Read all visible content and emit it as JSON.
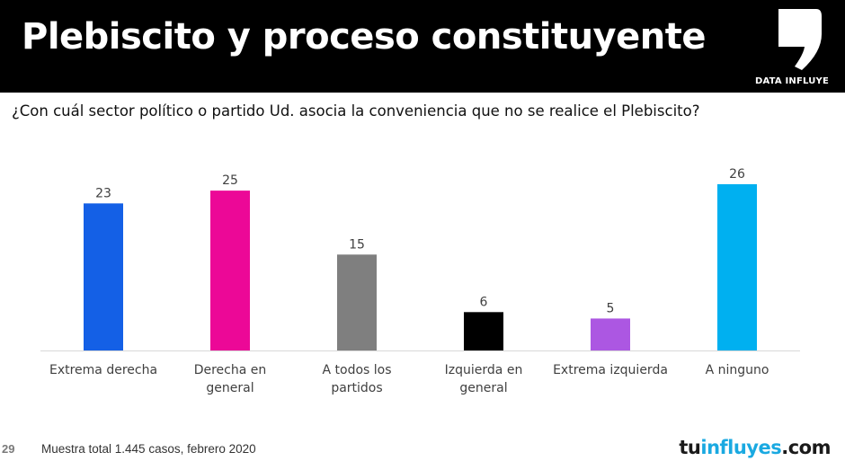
{
  "header": {
    "title": "Plebiscito y proceso constituyente",
    "logo_text": "DATA INFLUYE"
  },
  "question": "¿Con cuál sector político o partido Ud. asocia la conveniencia que no se realice el Plebiscito?",
  "chart_data": {
    "type": "bar",
    "categories": [
      [
        "Extrema derecha"
      ],
      [
        "Derecha en",
        "general"
      ],
      [
        "A todos los",
        "partidos"
      ],
      [
        "Izquierda en",
        "general"
      ],
      [
        "Extrema izquierda"
      ],
      [
        "A ninguno"
      ]
    ],
    "values": [
      23,
      25,
      15,
      6,
      5,
      26
    ],
    "colors": [
      "#1460e6",
      "#ec0897",
      "#7f7f7f",
      "#000000",
      "#ac57e2",
      "#00b0f0"
    ],
    "ylim": [
      0,
      26
    ],
    "grid": false,
    "legend": "none"
  },
  "footer": {
    "page_number": "29",
    "note": "Muestra total 1.445 casos, febrero 2020",
    "brand_part1": "tu",
    "brand_part2": "influyes",
    "brand_part3": ".com"
  }
}
